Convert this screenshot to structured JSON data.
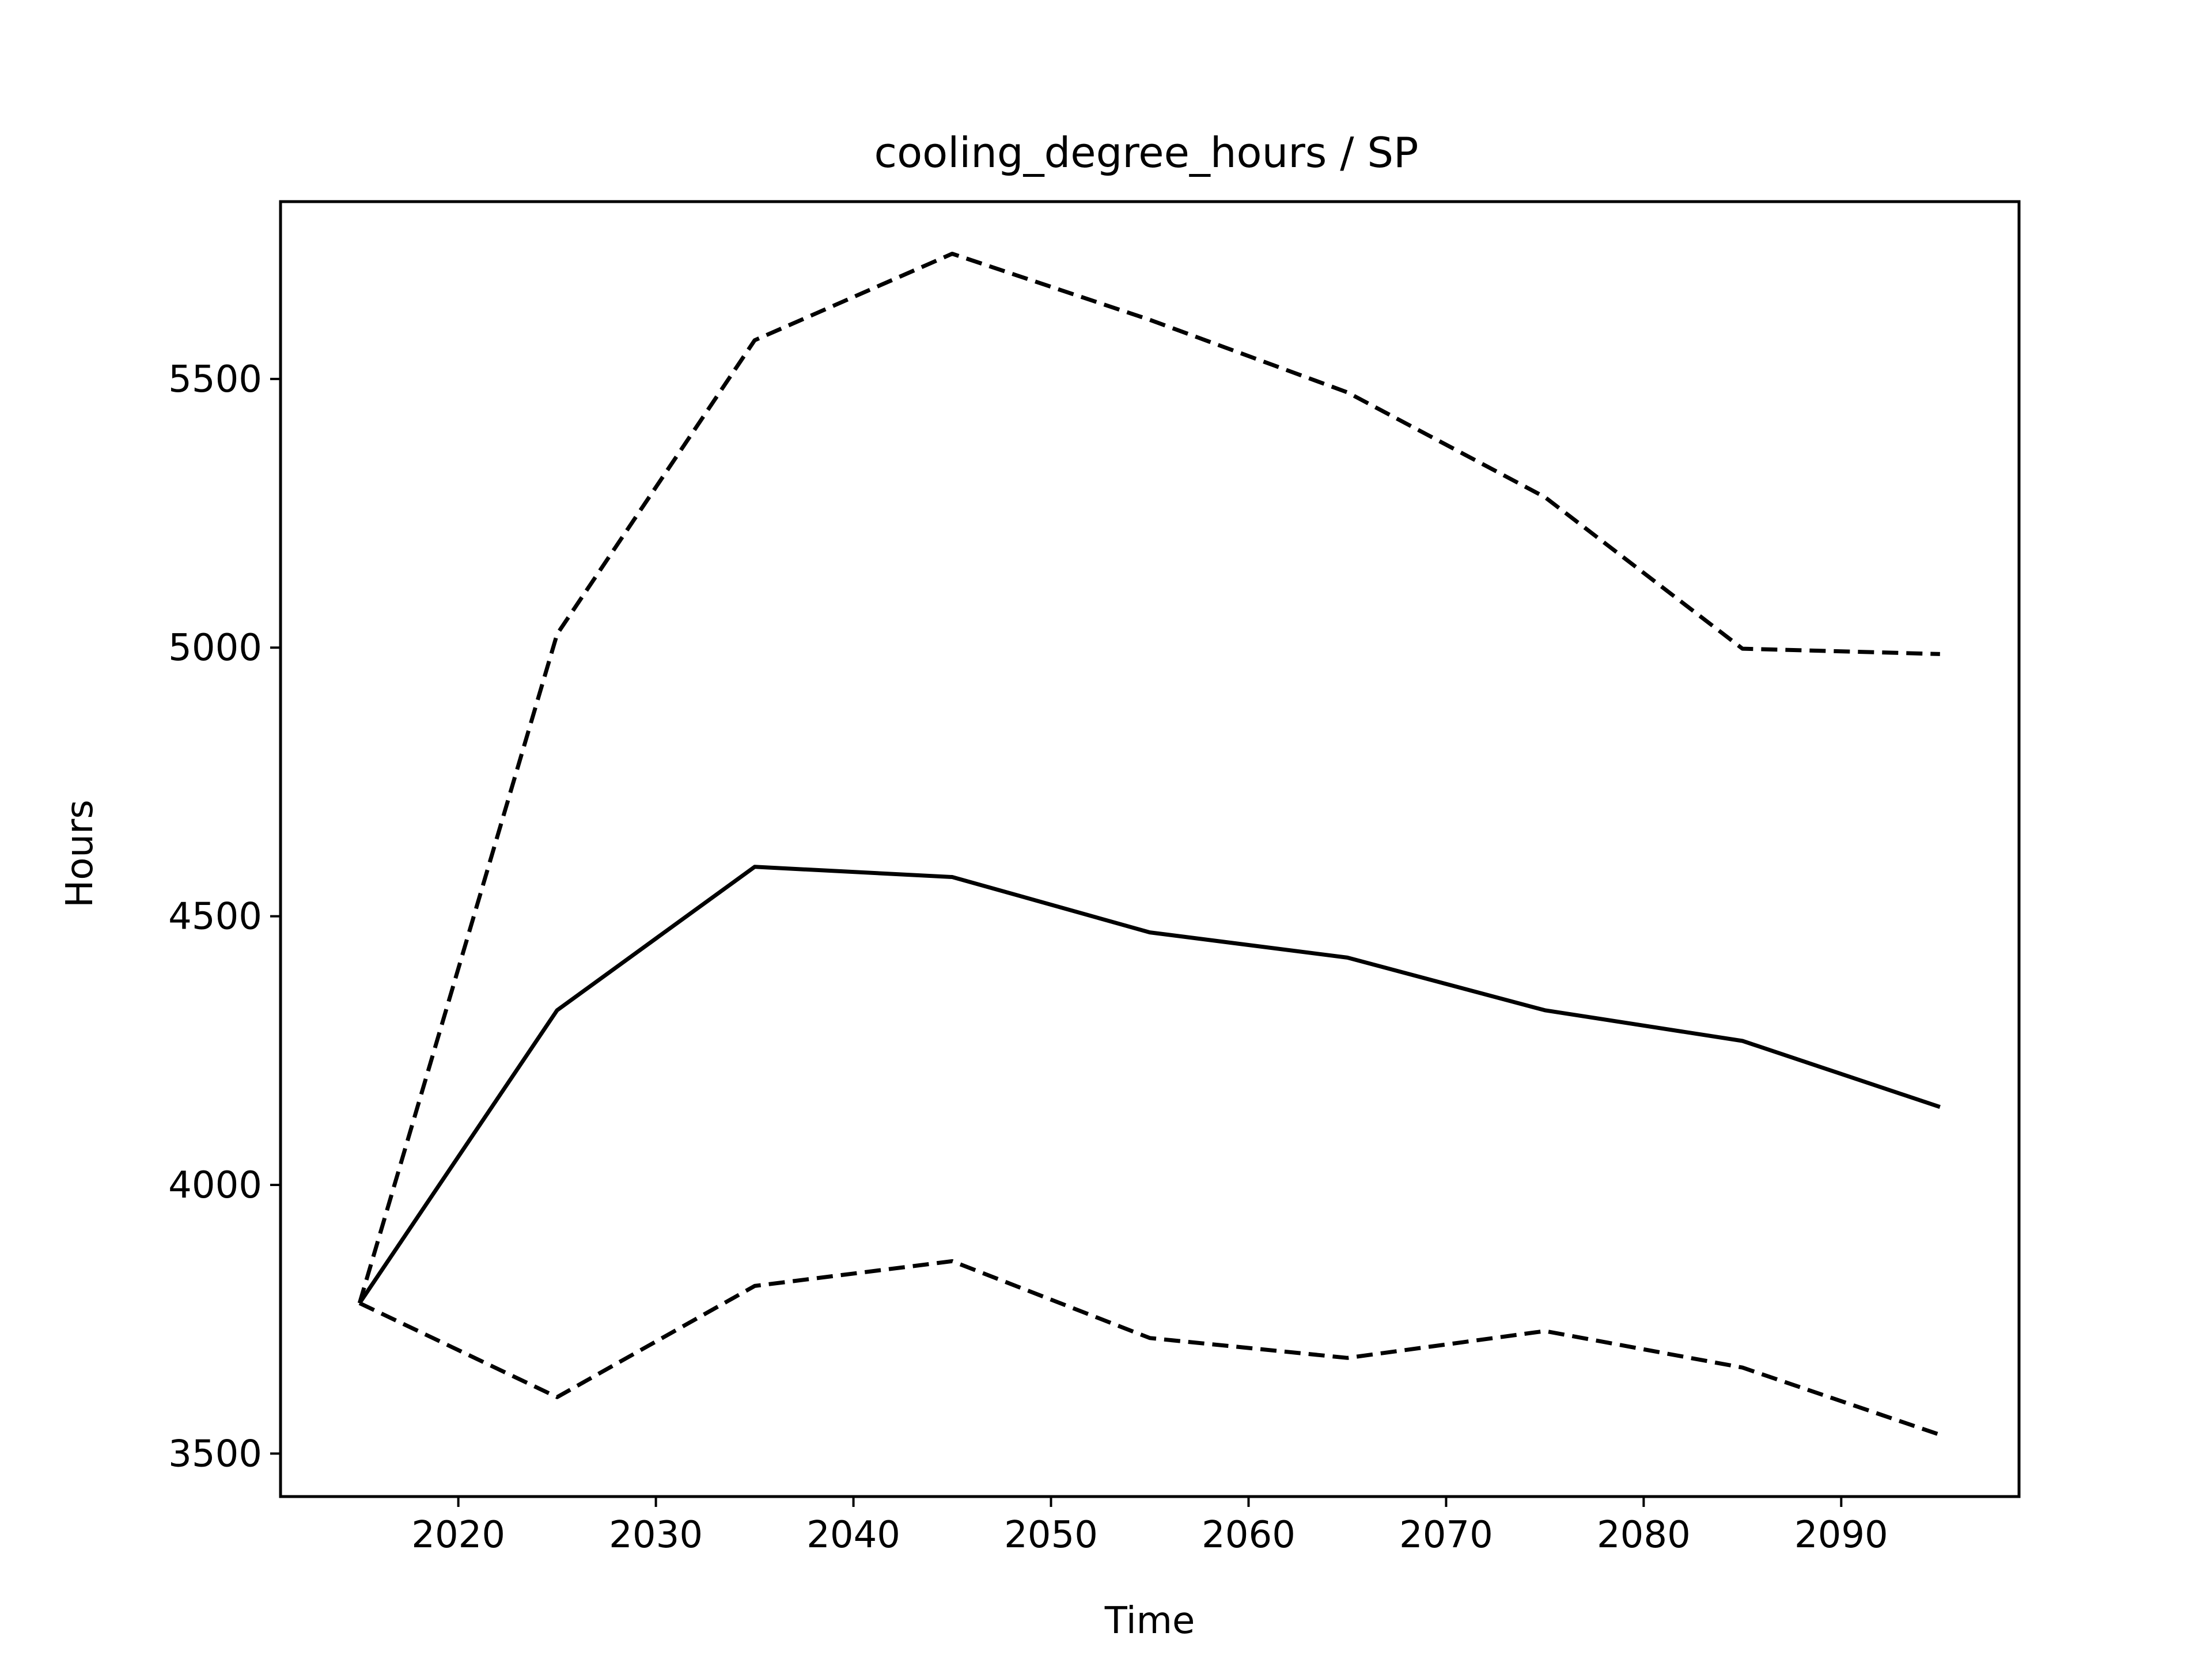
{
  "chart_data": {
    "type": "line",
    "title": "cooling_degree_hours / SP",
    "xlabel": "Time",
    "ylabel": "Hours",
    "xlim": [
      2011,
      2099
    ],
    "ylim": [
      3420,
      5830
    ],
    "x_ticks": [
      2020,
      2030,
      2040,
      2050,
      2060,
      2070,
      2080,
      2090
    ],
    "y_ticks": [
      3500,
      4000,
      4500,
      5000,
      5500
    ],
    "grid": false,
    "x": [
      2015,
      2025,
      2035,
      2045,
      2055,
      2065,
      2075,
      2085,
      2095
    ],
    "series": [
      {
        "style": "solid",
        "color": "#000000",
        "values": [
          3780,
          4325,
          4592,
          4573,
          4470,
          4423,
          4325,
          4268,
          4145
        ]
      },
      {
        "style": "dashed",
        "color": "#000000",
        "values": [
          3780,
          5025,
          5572,
          5733,
          5610,
          5475,
          5280,
          4998,
          4988
        ]
      },
      {
        "style": "dashed",
        "color": "#000000",
        "values": [
          3780,
          3605,
          3812,
          3858,
          3715,
          3678,
          3728,
          3660,
          3535
        ]
      }
    ]
  }
}
